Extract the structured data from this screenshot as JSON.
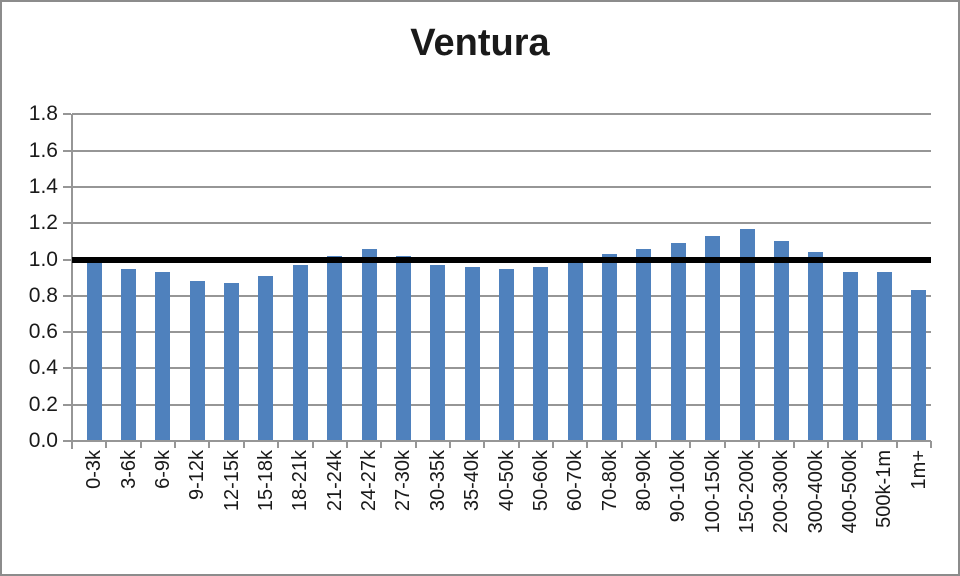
{
  "chart_data": {
    "type": "bar",
    "title": "Ventura",
    "categories": [
      "0-3k",
      "3-6k",
      "6-9k",
      "9-12k",
      "12-15k",
      "15-18k",
      "18-21k",
      "21-24k",
      "24-27k",
      "27-30k",
      "30-35k",
      "35-40k",
      "40-50k",
      "50-60k",
      "60-70k",
      "70-80k",
      "80-90k",
      "90-100k",
      "100-150k",
      "150-200k",
      "200-300k",
      "300-400k",
      "400-500k",
      "500k-1m",
      "1m+"
    ],
    "values": [
      0.98,
      0.95,
      0.93,
      0.88,
      0.87,
      0.91,
      0.97,
      1.02,
      1.06,
      1.02,
      0.97,
      0.96,
      0.95,
      0.96,
      0.98,
      1.03,
      1.06,
      1.09,
      1.13,
      1.17,
      1.1,
      1.04,
      0.93,
      0.93,
      0.83
    ],
    "xlabel": "",
    "ylabel": "",
    "ylim": [
      0,
      1.8
    ],
    "ytick_step": 0.2,
    "ytick_labels": [
      "0.0",
      "0.2",
      "0.4",
      "0.6",
      "0.8",
      "1.0",
      "1.2",
      "1.4",
      "1.6",
      "1.8"
    ],
    "grid": true,
    "legend": false,
    "reference_line": {
      "value": 1.0,
      "color": "#000000"
    },
    "bar_color": "#4f81bd",
    "gridline_color": "#969696",
    "axis_color": "#969696",
    "text_color": "#1a1a1a",
    "frame_border_color": "#8c8c8c"
  }
}
